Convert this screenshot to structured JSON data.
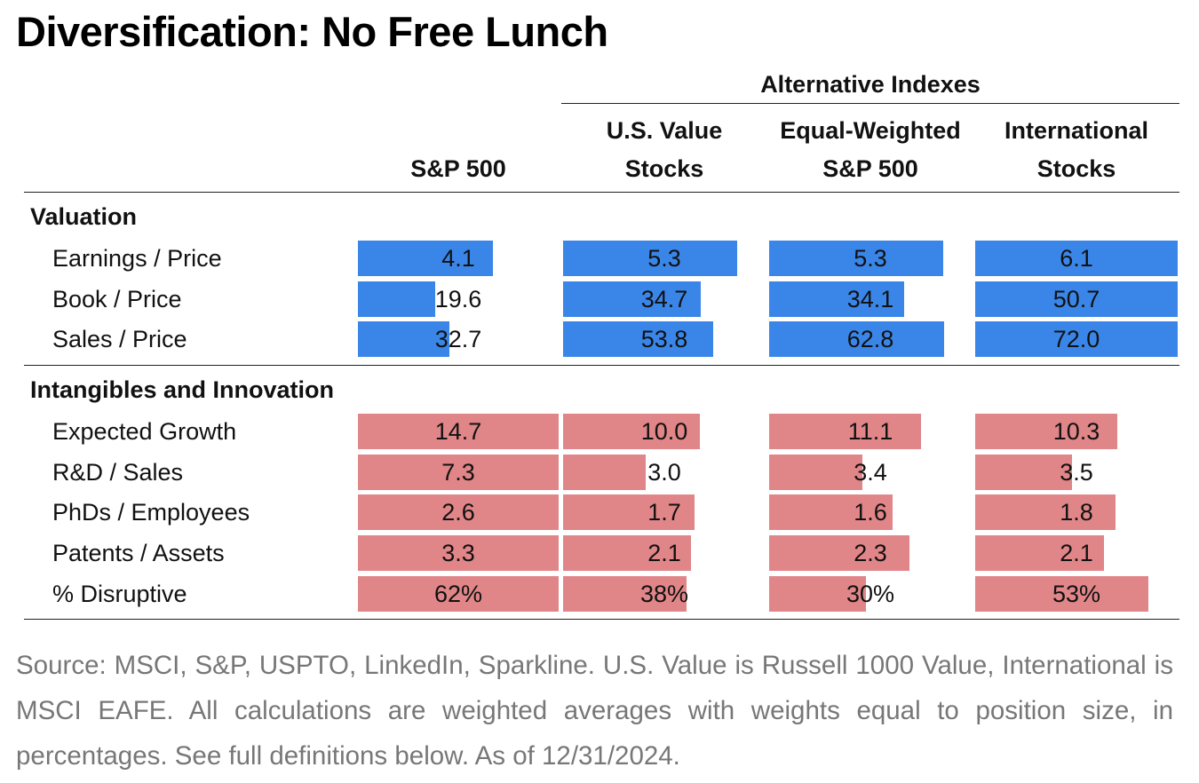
{
  "title": "Diversification: No Free Lunch",
  "group_header": "Alternative Indexes",
  "columns": [
    {
      "line1": "",
      "line2": "S&P 500"
    },
    {
      "line1": "U.S. Value",
      "line2": "Stocks"
    },
    {
      "line1": "Equal-Weighted",
      "line2": "S&P 500"
    },
    {
      "line1": "International",
      "line2": "Stocks"
    }
  ],
  "colors": {
    "valuation_bar": "#3a86e8",
    "intangibles_bar": "#e08588"
  },
  "chart_data": {
    "type": "table",
    "sections": [
      {
        "name": "Valuation",
        "rows": [
          {
            "label": "Earnings / Price",
            "values": [
              4.1,
              5.3,
              5.3,
              6.1
            ],
            "display": [
              "4.1",
              "5.3",
              "5.3",
              "6.1"
            ]
          },
          {
            "label": "Book / Price",
            "values": [
              19.6,
              34.7,
              34.1,
              50.7
            ],
            "display": [
              "19.6",
              "34.7",
              "34.1",
              "50.7"
            ]
          },
          {
            "label": "Sales / Price",
            "values": [
              32.7,
              53.8,
              62.8,
              72.0
            ],
            "display": [
              "32.7",
              "53.8",
              "62.8",
              "72.0"
            ]
          }
        ]
      },
      {
        "name": "Intangibles and Innovation",
        "rows": [
          {
            "label": "Expected Growth",
            "values": [
              14.7,
              10.0,
              11.1,
              10.3
            ],
            "display": [
              "14.7",
              "10.0",
              "11.1",
              "10.3"
            ]
          },
          {
            "label": "R&D / Sales",
            "values": [
              7.3,
              3.0,
              3.4,
              3.5
            ],
            "display": [
              "7.3",
              "3.0",
              "3.4",
              "3.5"
            ]
          },
          {
            "label": "PhDs / Employees",
            "values": [
              2.6,
              1.7,
              1.6,
              1.8
            ],
            "display": [
              "2.6",
              "1.7",
              "1.6",
              "1.8"
            ]
          },
          {
            "label": "Patents / Assets",
            "values": [
              3.3,
              2.1,
              2.3,
              2.1
            ],
            "display": [
              "3.3",
              "2.1",
              "2.3",
              "2.1"
            ]
          },
          {
            "label": "% Disruptive",
            "values": [
              62,
              38,
              30,
              53
            ],
            "display": [
              "62%",
              "38%",
              "30%",
              "53%"
            ]
          }
        ]
      }
    ]
  },
  "source": "Source: MSCI, S&P, USPTO, LinkedIn, Sparkline. U.S. Value is Russell 1000 Value, International is MSCI EAFE. All calculations are weighted averages with weights equal to position size, in percentages. See full definitions below. As of 12/31/2024."
}
